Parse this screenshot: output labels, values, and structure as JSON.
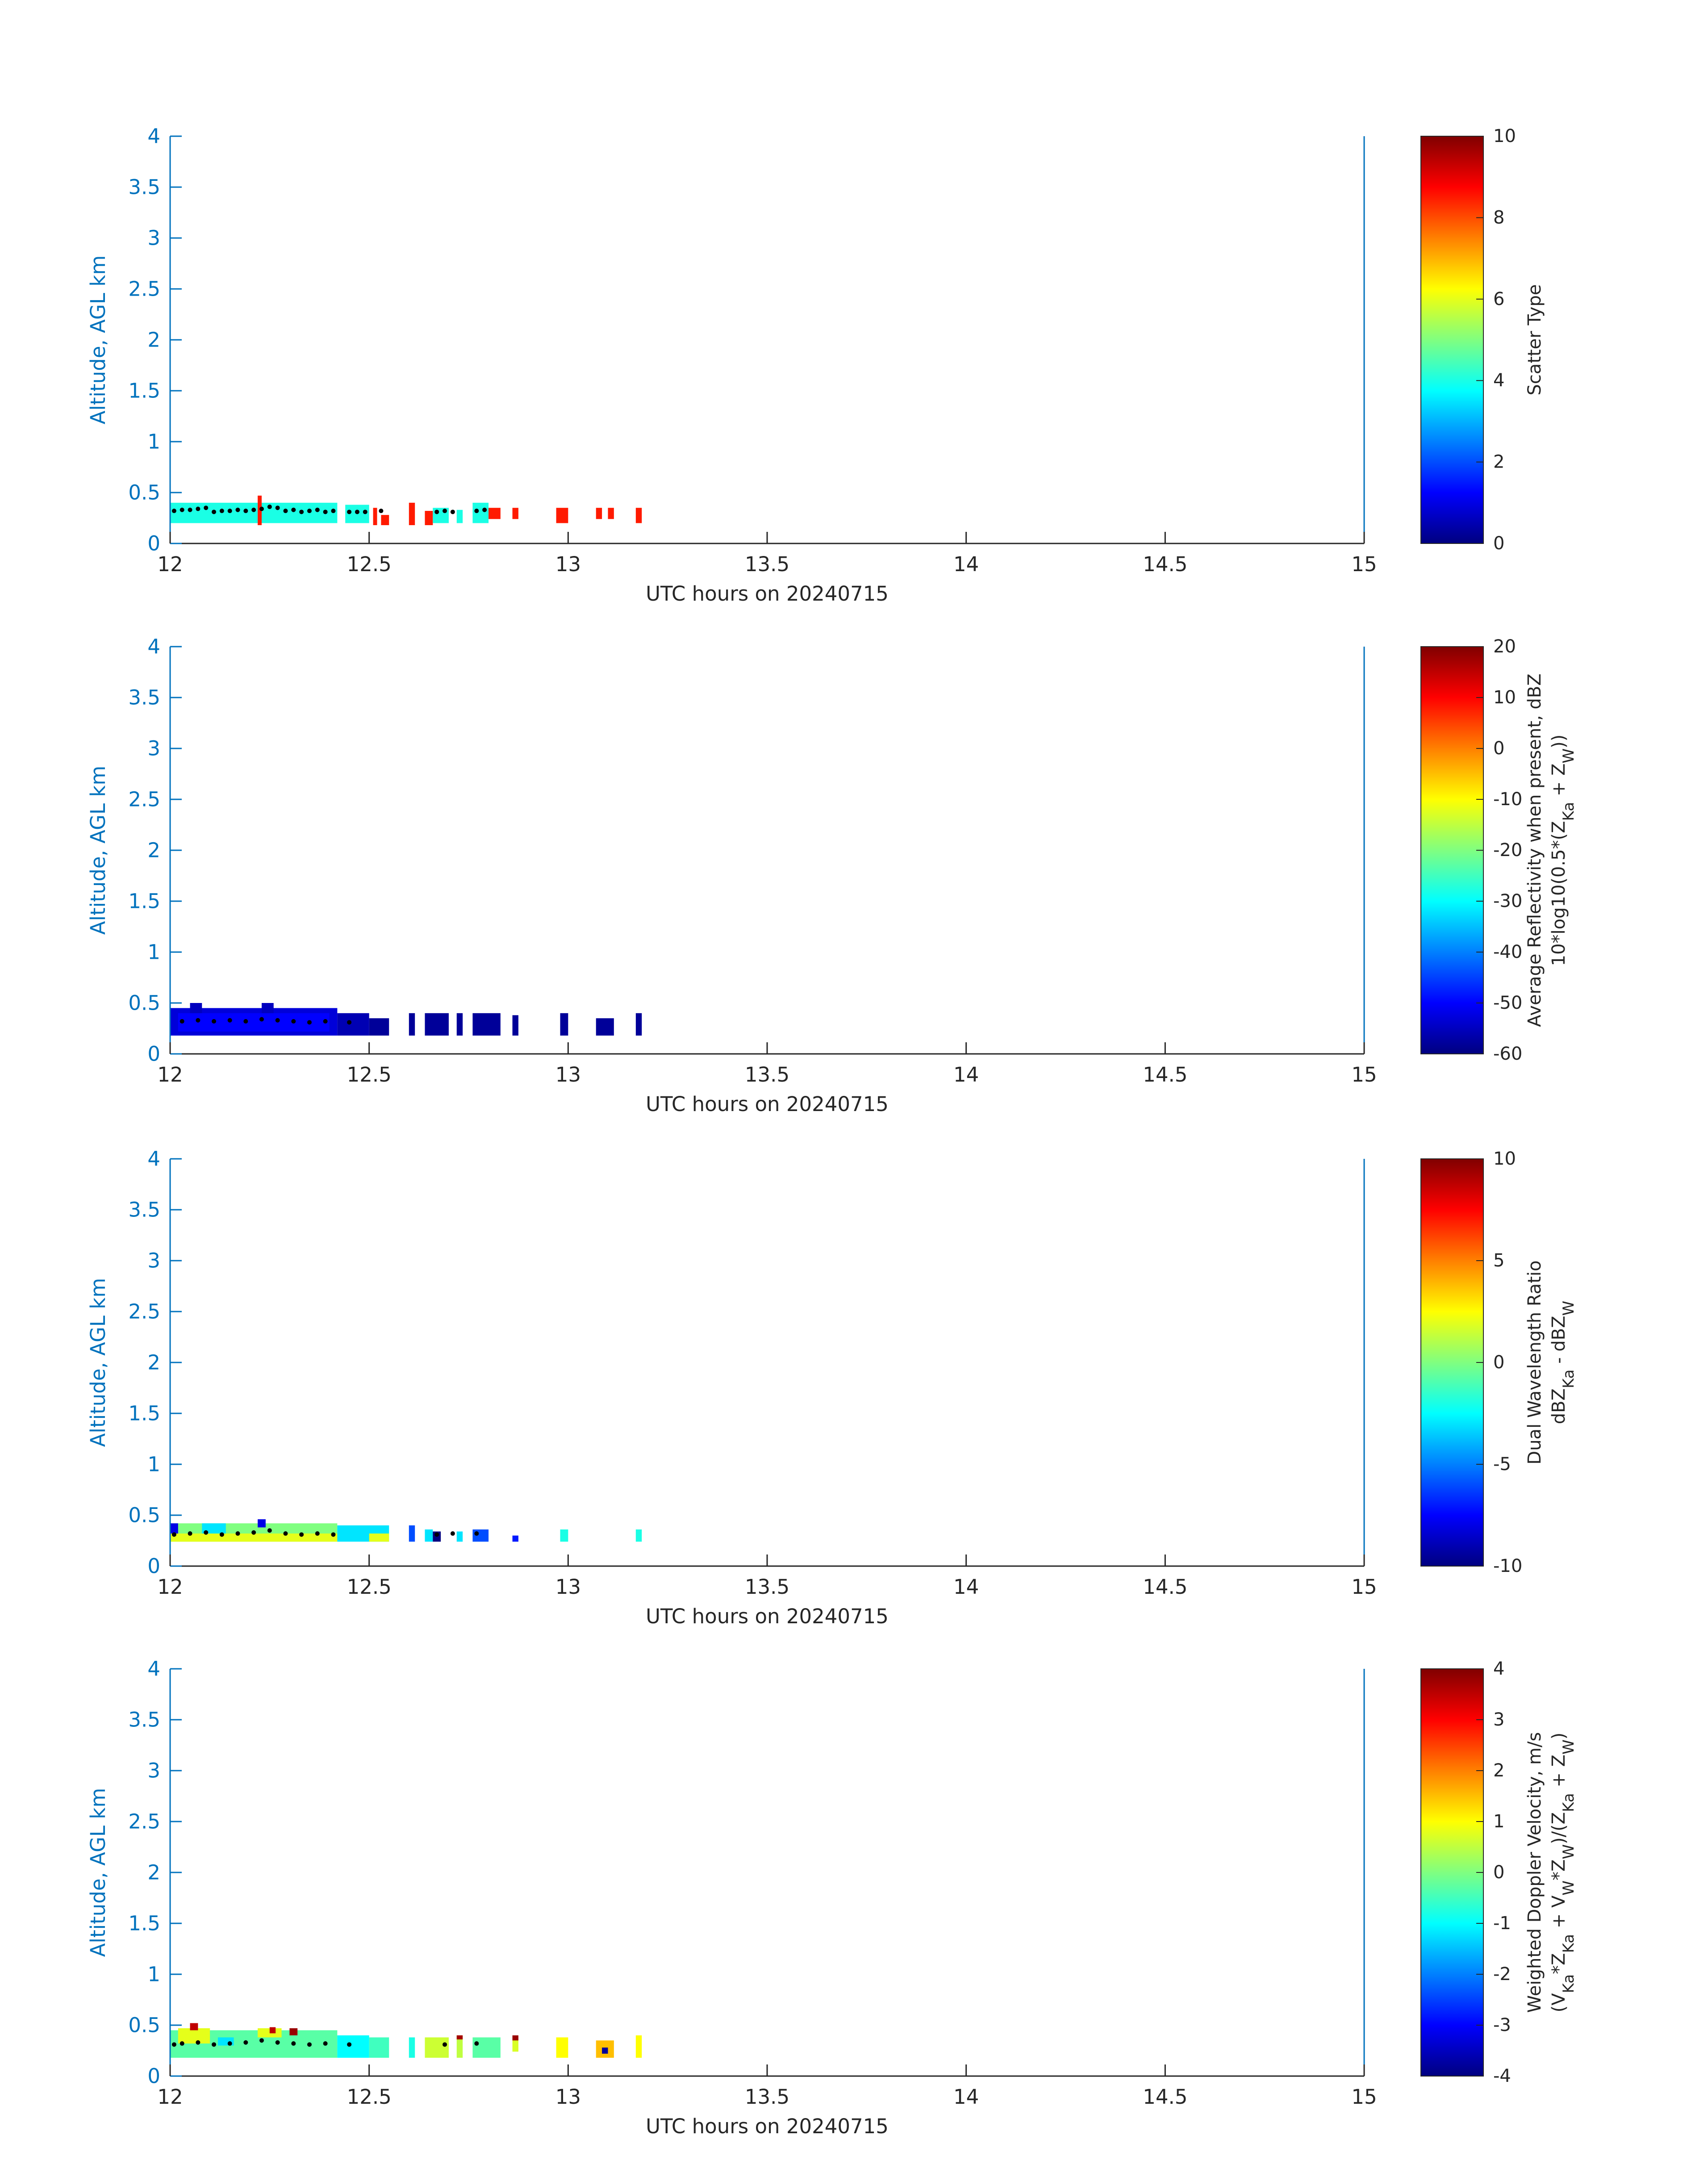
{
  "chart_data": [
    {
      "type": "heatmap",
      "xlabel": "UTC hours on 20240715",
      "ylabel": "Altitude, AGL km",
      "xlim": [
        12,
        15
      ],
      "ylim": [
        0,
        4
      ],
      "x_ticks": [
        "12",
        "12.5",
        "13",
        "13.5",
        "14",
        "14.5",
        "15"
      ],
      "y_ticks": [
        "0",
        "0.5",
        "1",
        "1.5",
        "2",
        "2.5",
        "3",
        "3.5",
        "4"
      ],
      "colorbar": {
        "label_lines": [
          "Scatter Type"
        ],
        "limits": [
          0,
          10
        ],
        "ticks": [
          "0",
          "2",
          "4",
          "6",
          "8",
          "10"
        ]
      },
      "cells": [
        {
          "x_start": 12.0,
          "x_end": 12.22,
          "y_bottom": 0.2,
          "y_top": 0.4,
          "value": 4
        },
        {
          "x_start": 12.22,
          "x_end": 12.23,
          "y_bottom": 0.18,
          "y_top": 0.47,
          "value": 8.5
        },
        {
          "x_start": 12.23,
          "x_end": 12.42,
          "y_bottom": 0.2,
          "y_top": 0.4,
          "value": 4
        },
        {
          "x_start": 12.44,
          "x_end": 12.5,
          "y_bottom": 0.2,
          "y_top": 0.38,
          "value": 4
        },
        {
          "x_start": 12.51,
          "x_end": 12.52,
          "y_bottom": 0.18,
          "y_top": 0.35,
          "value": 8.5
        },
        {
          "x_start": 12.53,
          "x_end": 12.55,
          "y_bottom": 0.18,
          "y_top": 0.28,
          "value": 8.5
        },
        {
          "x_start": 12.6,
          "x_end": 12.615,
          "y_bottom": 0.18,
          "y_top": 0.4,
          "value": 8.5
        },
        {
          "x_start": 12.64,
          "x_end": 12.66,
          "y_bottom": 0.18,
          "y_top": 0.32,
          "value": 8.5
        },
        {
          "x_start": 12.66,
          "x_end": 12.7,
          "y_bottom": 0.2,
          "y_top": 0.35,
          "value": 4
        },
        {
          "x_start": 12.72,
          "x_end": 12.735,
          "y_bottom": 0.2,
          "y_top": 0.33,
          "value": 4
        },
        {
          "x_start": 12.76,
          "x_end": 12.8,
          "y_bottom": 0.2,
          "y_top": 0.4,
          "value": 4
        },
        {
          "x_start": 12.8,
          "x_end": 12.83,
          "y_bottom": 0.24,
          "y_top": 0.35,
          "value": 8.5
        },
        {
          "x_start": 12.86,
          "x_end": 12.875,
          "y_bottom": 0.24,
          "y_top": 0.35,
          "value": 8.5
        },
        {
          "x_start": 12.97,
          "x_end": 13.0,
          "y_bottom": 0.2,
          "y_top": 0.35,
          "value": 8.5
        },
        {
          "x_start": 13.07,
          "x_end": 13.085,
          "y_bottom": 0.24,
          "y_top": 0.35,
          "value": 8.5
        },
        {
          "x_start": 13.1,
          "x_end": 13.115,
          "y_bottom": 0.24,
          "y_top": 0.35,
          "value": 8.5
        },
        {
          "x_start": 13.17,
          "x_end": 13.185,
          "y_bottom": 0.2,
          "y_top": 0.35,
          "value": 8.5
        }
      ],
      "series": [
        {
          "x": [
            12.01,
            12.03,
            12.05,
            12.07,
            12.09,
            12.11,
            12.13,
            12.15,
            12.17,
            12.19,
            12.21,
            12.23,
            12.25,
            12.27,
            12.29,
            12.31,
            12.33,
            12.35,
            12.37,
            12.39,
            12.41,
            12.45,
            12.47,
            12.49,
            12.53,
            12.67,
            12.69,
            12.71,
            12.77,
            12.79
          ],
          "y": [
            0.32,
            0.33,
            0.33,
            0.34,
            0.35,
            0.31,
            0.32,
            0.32,
            0.33,
            0.32,
            0.33,
            0.34,
            0.36,
            0.35,
            0.32,
            0.33,
            0.31,
            0.32,
            0.33,
            0.31,
            0.32,
            0.31,
            0.31,
            0.31,
            0.32,
            0.31,
            0.32,
            0.31,
            0.32,
            0.33
          ]
        }
      ]
    },
    {
      "type": "heatmap",
      "xlabel": "UTC hours on 20240715",
      "ylabel": "Altitude, AGL km",
      "xlim": [
        12,
        15
      ],
      "ylim": [
        0,
        4
      ],
      "x_ticks": [
        "12",
        "12.5",
        "13",
        "13.5",
        "14",
        "14.5",
        "15"
      ],
      "y_ticks": [
        "0",
        "0.5",
        "1",
        "1.5",
        "2",
        "2.5",
        "3",
        "3.5",
        "4"
      ],
      "colorbar": {
        "label_lines": [
          "Average Reflectivity when present, dBZ",
          "10*log10(0.5*(Z_Ka + Z_W))"
        ],
        "limits": [
          -60,
          20
        ],
        "ticks": [
          "-60",
          "-50",
          "-40",
          "-30",
          "-20",
          "-10",
          "0",
          "10",
          "20"
        ]
      },
      "cells": [
        {
          "x_start": 12.0,
          "x_end": 12.42,
          "y_bottom": 0.18,
          "y_top": 0.45,
          "value": -53
        },
        {
          "x_start": 12.02,
          "x_end": 12.4,
          "y_bottom": 0.22,
          "y_top": 0.4,
          "value": -50
        },
        {
          "x_start": 12.05,
          "x_end": 12.08,
          "y_bottom": 0.4,
          "y_top": 0.5,
          "value": -55
        },
        {
          "x_start": 12.23,
          "x_end": 12.26,
          "y_bottom": 0.4,
          "y_top": 0.5,
          "value": -55
        },
        {
          "x_start": 12.42,
          "x_end": 12.5,
          "y_bottom": 0.18,
          "y_top": 0.4,
          "value": -56
        },
        {
          "x_start": 12.5,
          "x_end": 12.55,
          "y_bottom": 0.18,
          "y_top": 0.35,
          "value": -58
        },
        {
          "x_start": 12.6,
          "x_end": 12.615,
          "y_bottom": 0.18,
          "y_top": 0.4,
          "value": -58
        },
        {
          "x_start": 12.64,
          "x_end": 12.7,
          "y_bottom": 0.18,
          "y_top": 0.4,
          "value": -58
        },
        {
          "x_start": 12.72,
          "x_end": 12.735,
          "y_bottom": 0.18,
          "y_top": 0.4,
          "value": -58
        },
        {
          "x_start": 12.76,
          "x_end": 12.83,
          "y_bottom": 0.18,
          "y_top": 0.4,
          "value": -58
        },
        {
          "x_start": 12.86,
          "x_end": 12.875,
          "y_bottom": 0.18,
          "y_top": 0.38,
          "value": -58
        },
        {
          "x_start": 12.98,
          "x_end": 13.0,
          "y_bottom": 0.18,
          "y_top": 0.4,
          "value": -58
        },
        {
          "x_start": 13.07,
          "x_end": 13.115,
          "y_bottom": 0.18,
          "y_top": 0.35,
          "value": -58
        },
        {
          "x_start": 13.17,
          "x_end": 13.185,
          "y_bottom": 0.18,
          "y_top": 0.4,
          "value": -58
        }
      ],
      "series": [
        {
          "x": [
            12.03,
            12.07,
            12.11,
            12.15,
            12.19,
            12.23,
            12.27,
            12.31,
            12.35,
            12.39,
            12.45
          ],
          "y": [
            0.32,
            0.33,
            0.32,
            0.33,
            0.32,
            0.34,
            0.33,
            0.32,
            0.31,
            0.32,
            0.31
          ]
        }
      ]
    },
    {
      "type": "heatmap",
      "xlabel": "UTC hours on 20240715",
      "ylabel": "Altitude, AGL km",
      "xlim": [
        12,
        15
      ],
      "ylim": [
        0,
        4
      ],
      "x_ticks": [
        "12",
        "12.5",
        "13",
        "13.5",
        "14",
        "14.5",
        "15"
      ],
      "y_ticks": [
        "0",
        "0.5",
        "1",
        "1.5",
        "2",
        "2.5",
        "3",
        "3.5",
        "4"
      ],
      "colorbar": {
        "label_lines": [
          "Dual Wavelength Ratio",
          "dBZ_Ka - dBZ_W"
        ],
        "limits": [
          -10,
          10
        ],
        "ticks": [
          "-10",
          "-5",
          "0",
          "5",
          "10"
        ]
      },
      "cells": [
        {
          "x_start": 12.0,
          "x_end": 12.42,
          "y_bottom": 0.24,
          "y_top": 0.42,
          "value": 0
        },
        {
          "x_start": 12.0,
          "x_end": 12.42,
          "y_bottom": 0.24,
          "y_top": 0.32,
          "value": 2
        },
        {
          "x_start": 12.0,
          "x_end": 12.02,
          "y_bottom": 0.32,
          "y_top": 0.42,
          "value": -8
        },
        {
          "x_start": 12.08,
          "x_end": 12.14,
          "y_bottom": 0.32,
          "y_top": 0.42,
          "value": -3
        },
        {
          "x_start": 12.22,
          "x_end": 12.24,
          "y_bottom": 0.38,
          "y_top": 0.46,
          "value": -8
        },
        {
          "x_start": 12.42,
          "x_end": 12.55,
          "y_bottom": 0.24,
          "y_top": 0.4,
          "value": -3
        },
        {
          "x_start": 12.5,
          "x_end": 12.55,
          "y_bottom": 0.24,
          "y_top": 0.32,
          "value": 2
        },
        {
          "x_start": 12.6,
          "x_end": 12.615,
          "y_bottom": 0.24,
          "y_top": 0.4,
          "value": -6
        },
        {
          "x_start": 12.64,
          "x_end": 12.66,
          "y_bottom": 0.24,
          "y_top": 0.36,
          "value": -3
        },
        {
          "x_start": 12.66,
          "x_end": 12.68,
          "y_bottom": 0.24,
          "y_top": 0.34,
          "value": -10
        },
        {
          "x_start": 12.72,
          "x_end": 12.735,
          "y_bottom": 0.24,
          "y_top": 0.34,
          "value": -3
        },
        {
          "x_start": 12.76,
          "x_end": 12.8,
          "y_bottom": 0.24,
          "y_top": 0.36,
          "value": -6
        },
        {
          "x_start": 12.86,
          "x_end": 12.875,
          "y_bottom": 0.24,
          "y_top": 0.3,
          "value": -7
        },
        {
          "x_start": 12.98,
          "x_end": 13.0,
          "y_bottom": 0.24,
          "y_top": 0.36,
          "value": -2
        },
        {
          "x_start": 13.17,
          "x_end": 13.185,
          "y_bottom": 0.24,
          "y_top": 0.36,
          "value": -2
        }
      ],
      "series": [
        {
          "x": [
            12.01,
            12.05,
            12.09,
            12.13,
            12.17,
            12.21,
            12.25,
            12.29,
            12.33,
            12.37,
            12.41,
            12.67,
            12.71,
            12.77
          ],
          "y": [
            0.31,
            0.32,
            0.33,
            0.31,
            0.32,
            0.33,
            0.35,
            0.32,
            0.31,
            0.32,
            0.31,
            0.31,
            0.32,
            0.32
          ]
        }
      ]
    },
    {
      "type": "heatmap",
      "xlabel": "UTC hours on 20240715",
      "ylabel": "Altitude, AGL km",
      "xlim": [
        12,
        15
      ],
      "ylim": [
        0,
        4
      ],
      "x_ticks": [
        "12",
        "12.5",
        "13",
        "13.5",
        "14",
        "14.5",
        "15"
      ],
      "y_ticks": [
        "0",
        "0.5",
        "1",
        "1.5",
        "2",
        "2.5",
        "3",
        "3.5",
        "4"
      ],
      "colorbar": {
        "label_lines": [
          "Weighted Doppler Velocity, m/s",
          "(V_Ka*Z_Ka + V_W*Z_W)/(Z_Ka + Z_W)"
        ],
        "limits": [
          -4,
          4
        ],
        "ticks": [
          "-4",
          "-3",
          "-2",
          "-1",
          "0",
          "1",
          "2",
          "3",
          "4"
        ]
      },
      "cells": [
        {
          "x_start": 12.0,
          "x_end": 12.42,
          "y_bottom": 0.18,
          "y_top": 0.45,
          "value": -0.3
        },
        {
          "x_start": 12.02,
          "x_end": 12.1,
          "y_bottom": 0.32,
          "y_top": 0.47,
          "value": 0.8
        },
        {
          "x_start": 12.05,
          "x_end": 12.07,
          "y_bottom": 0.45,
          "y_top": 0.52,
          "value": 3.5
        },
        {
          "x_start": 12.12,
          "x_end": 12.16,
          "y_bottom": 0.3,
          "y_top": 0.38,
          "value": -1.2
        },
        {
          "x_start": 12.22,
          "x_end": 12.28,
          "y_bottom": 0.38,
          "y_top": 0.47,
          "value": 0.8
        },
        {
          "x_start": 12.25,
          "x_end": 12.265,
          "y_bottom": 0.42,
          "y_top": 0.48,
          "value": 3.5
        },
        {
          "x_start": 12.3,
          "x_end": 12.32,
          "y_bottom": 0.4,
          "y_top": 0.47,
          "value": 3.8
        },
        {
          "x_start": 12.42,
          "x_end": 12.5,
          "y_bottom": 0.18,
          "y_top": 0.4,
          "value": -1
        },
        {
          "x_start": 12.5,
          "x_end": 12.55,
          "y_bottom": 0.18,
          "y_top": 0.38,
          "value": -0.5
        },
        {
          "x_start": 12.6,
          "x_end": 12.615,
          "y_bottom": 0.18,
          "y_top": 0.38,
          "value": -0.8
        },
        {
          "x_start": 12.64,
          "x_end": 12.7,
          "y_bottom": 0.18,
          "y_top": 0.38,
          "value": 0.6
        },
        {
          "x_start": 12.72,
          "x_end": 12.735,
          "y_bottom": 0.18,
          "y_top": 0.4,
          "value": 0.5
        },
        {
          "x_start": 12.72,
          "x_end": 12.735,
          "y_bottom": 0.36,
          "y_top": 0.4,
          "value": 3.7
        },
        {
          "x_start": 12.76,
          "x_end": 12.83,
          "y_bottom": 0.18,
          "y_top": 0.38,
          "value": -0.3
        },
        {
          "x_start": 12.86,
          "x_end": 12.875,
          "y_bottom": 0.24,
          "y_top": 0.38,
          "value": 0.7
        },
        {
          "x_start": 12.86,
          "x_end": 12.875,
          "y_bottom": 0.35,
          "y_top": 0.4,
          "value": 3.8
        },
        {
          "x_start": 12.97,
          "x_end": 13.0,
          "y_bottom": 0.18,
          "y_top": 0.38,
          "value": 1
        },
        {
          "x_start": 13.07,
          "x_end": 13.115,
          "y_bottom": 0.18,
          "y_top": 0.35,
          "value": 1.5
        },
        {
          "x_start": 13.085,
          "x_end": 13.1,
          "y_bottom": 0.22,
          "y_top": 0.28,
          "value": -3.8
        },
        {
          "x_start": 13.17,
          "x_end": 13.185,
          "y_bottom": 0.18,
          "y_top": 0.4,
          "value": 1
        }
      ],
      "series": [
        {
          "x": [
            12.01,
            12.03,
            12.07,
            12.11,
            12.15,
            12.19,
            12.23,
            12.27,
            12.31,
            12.35,
            12.39,
            12.45,
            12.69,
            12.77
          ],
          "y": [
            0.31,
            0.32,
            0.33,
            0.31,
            0.32,
            0.33,
            0.35,
            0.33,
            0.32,
            0.31,
            0.32,
            0.31,
            0.31,
            0.32
          ]
        }
      ]
    }
  ]
}
